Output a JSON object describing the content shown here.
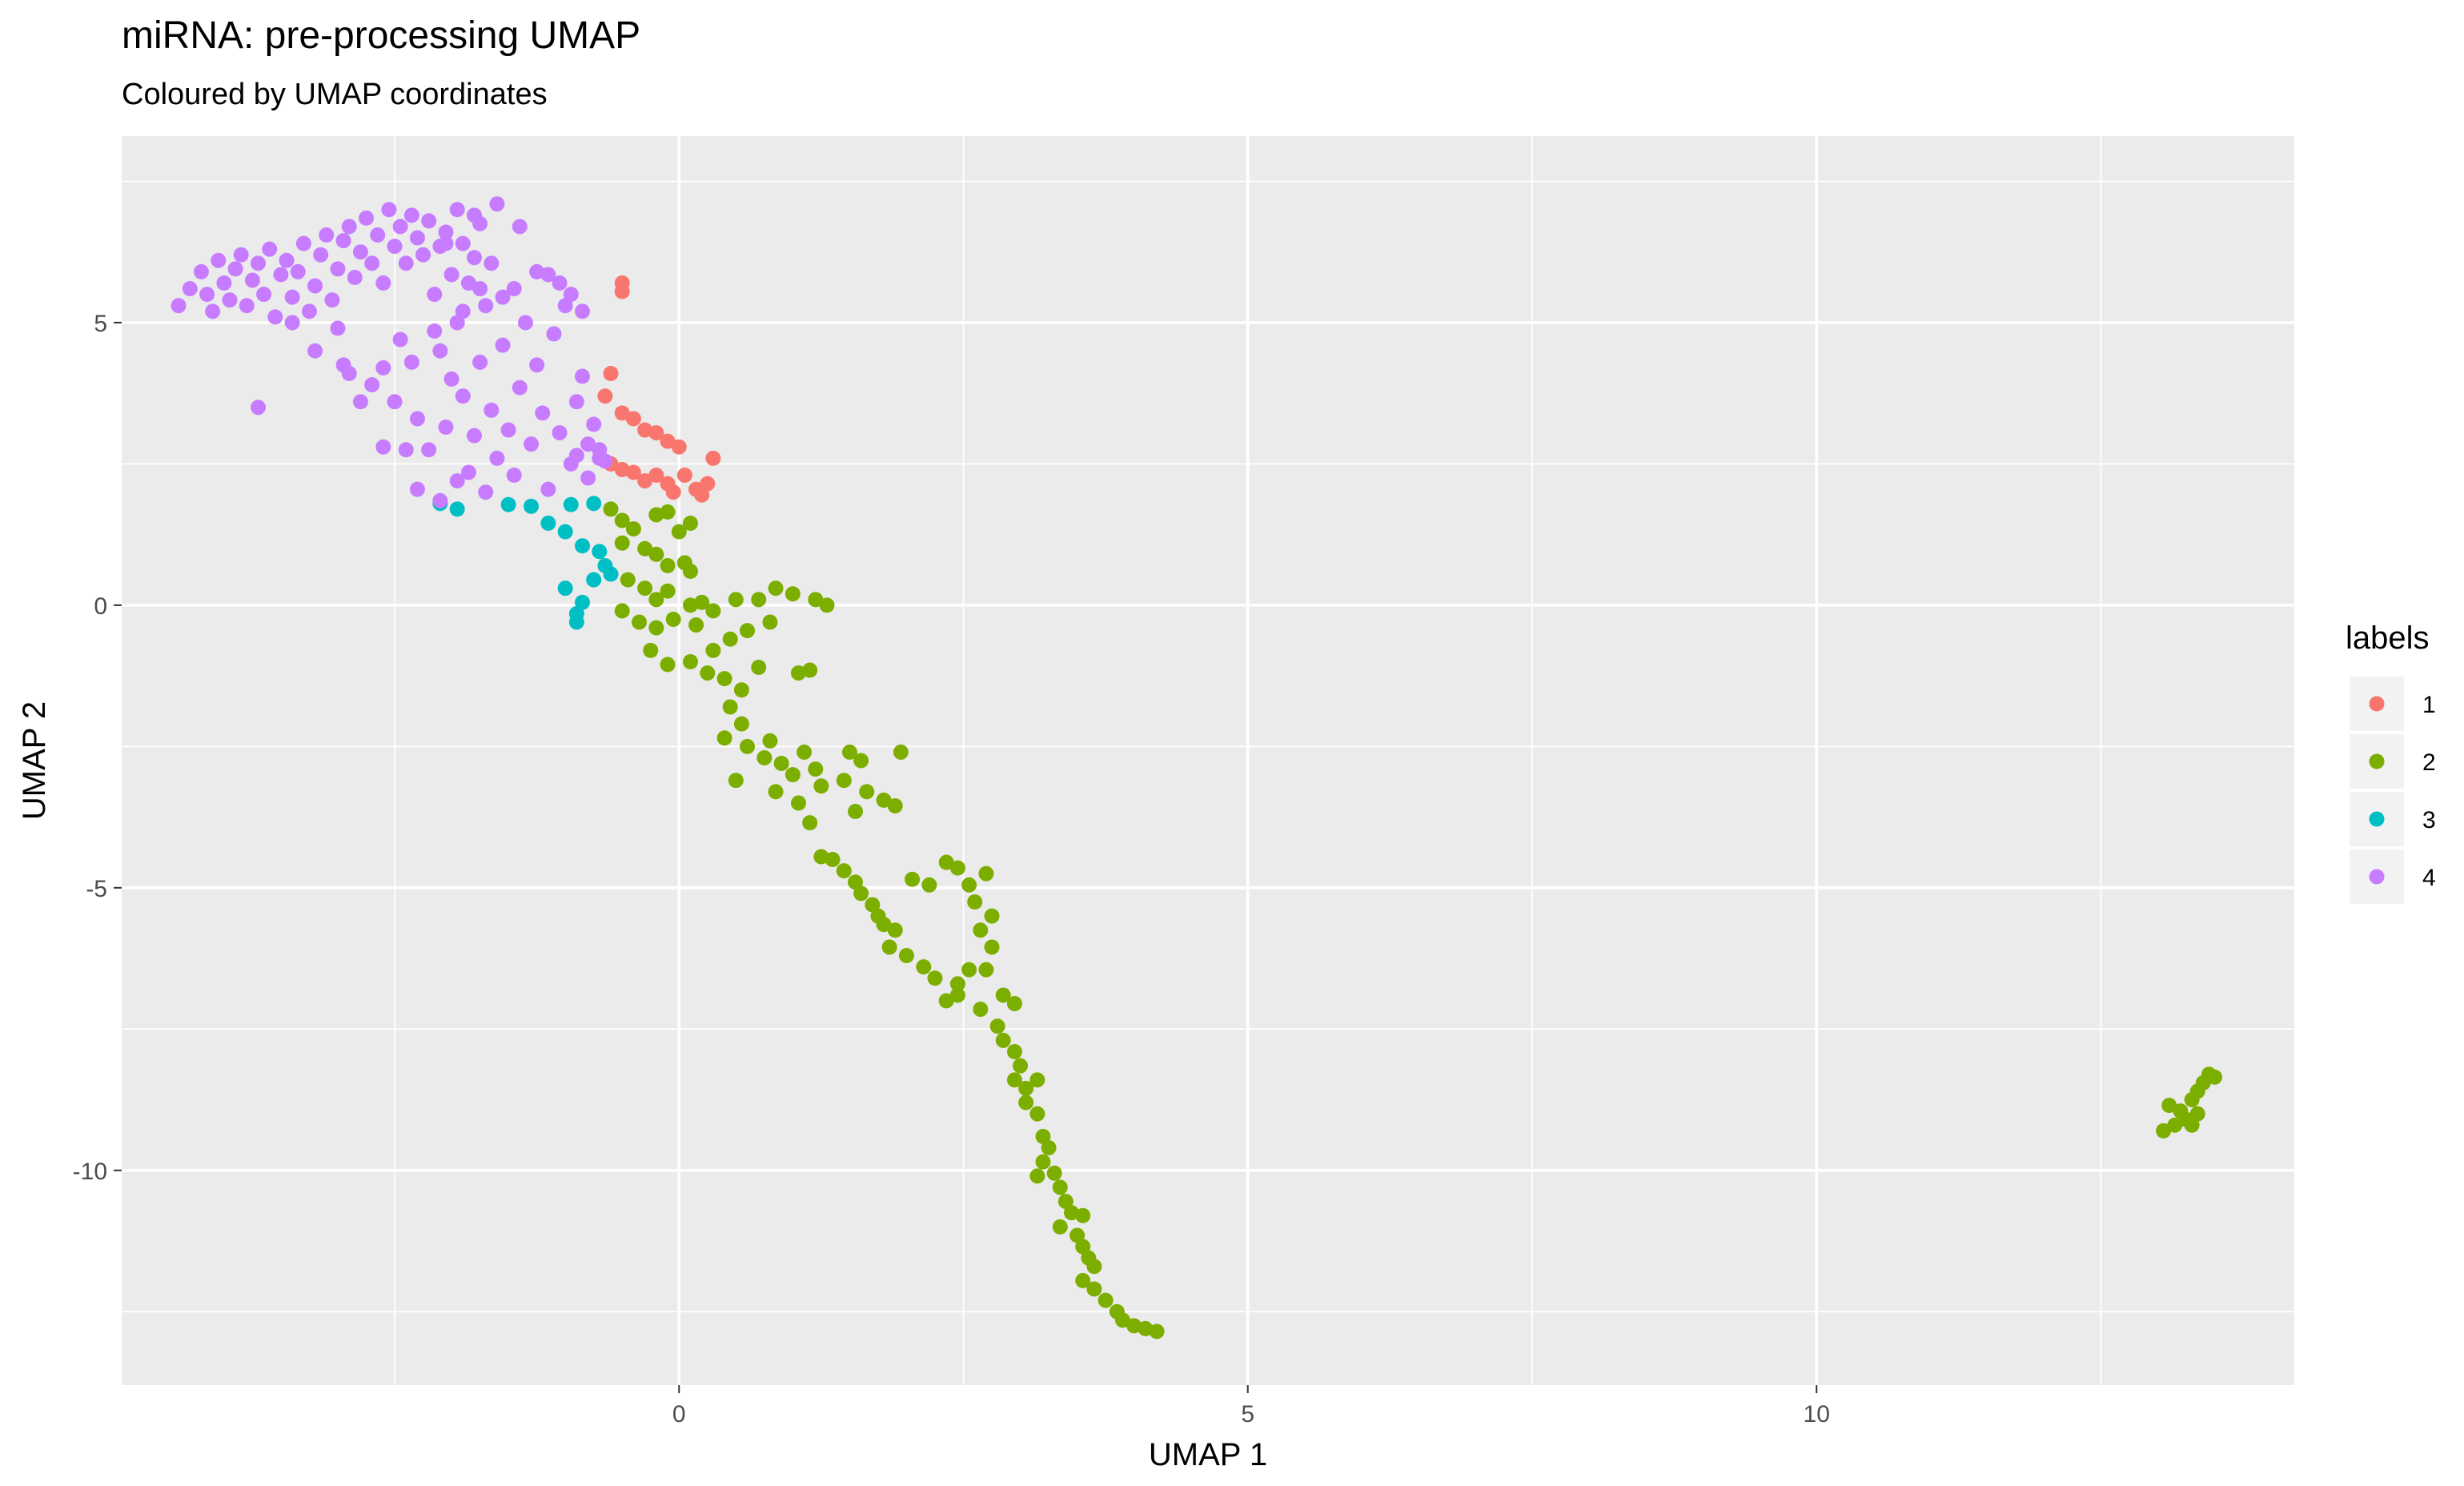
{
  "chart_data": {
    "type": "scatter",
    "title": "miRNA: pre-processing UMAP",
    "subtitle": "Coloured by UMAP coordinates",
    "xlabel": "UMAP 1",
    "ylabel": "UMAP 2",
    "xlim": [
      -4.9,
      14.2
    ],
    "ylim": [
      -13.8,
      8.3
    ],
    "x_ticks": [
      0,
      5,
      10
    ],
    "x_tick_labels": [
      "0",
      "5",
      "10"
    ],
    "y_ticks": [
      5,
      0,
      -5,
      -10
    ],
    "y_tick_labels": [
      "5",
      "0",
      "-5",
      "-10"
    ],
    "grid": true,
    "legend": {
      "title": "labels",
      "placement": "right",
      "items": [
        {
          "label": "1",
          "color": "#F8766D"
        },
        {
          "label": "2",
          "color": "#7CAE00"
        },
        {
          "label": "3",
          "color": "#00BFC4"
        },
        {
          "label": "4",
          "color": "#C77CFF"
        }
      ]
    },
    "series": [
      {
        "label": "1",
        "color": "#F8766D",
        "points": [
          [
            -0.5,
            5.7
          ],
          [
            -0.5,
            5.55
          ],
          [
            -0.6,
            4.1
          ],
          [
            -0.65,
            3.7
          ],
          [
            -0.5,
            3.4
          ],
          [
            -0.4,
            3.3
          ],
          [
            -0.3,
            3.1
          ],
          [
            -0.2,
            3.05
          ],
          [
            -0.1,
            2.9
          ],
          [
            0.0,
            2.8
          ],
          [
            -0.6,
            2.5
          ],
          [
            -0.5,
            2.4
          ],
          [
            -0.4,
            2.35
          ],
          [
            -0.3,
            2.2
          ],
          [
            -0.2,
            2.3
          ],
          [
            -0.1,
            2.15
          ],
          [
            0.05,
            2.3
          ],
          [
            -0.05,
            2.0
          ],
          [
            0.15,
            2.05
          ],
          [
            0.3,
            2.6
          ],
          [
            0.25,
            2.15
          ],
          [
            0.2,
            1.95
          ]
        ]
      },
      {
        "label": "2",
        "color": "#7CAE00",
        "points": [
          [
            -0.6,
            1.7
          ],
          [
            -0.5,
            1.5
          ],
          [
            -0.4,
            1.35
          ],
          [
            -0.2,
            1.6
          ],
          [
            -0.1,
            1.65
          ],
          [
            0.0,
            1.3
          ],
          [
            0.1,
            1.45
          ],
          [
            -0.5,
            1.1
          ],
          [
            -0.3,
            1.0
          ],
          [
            -0.2,
            0.9
          ],
          [
            -0.1,
            0.7
          ],
          [
            0.05,
            0.75
          ],
          [
            0.1,
            0.6
          ],
          [
            -0.45,
            0.45
          ],
          [
            -0.3,
            0.3
          ],
          [
            -0.2,
            0.1
          ],
          [
            -0.1,
            0.25
          ],
          [
            0.1,
            0.0
          ],
          [
            0.2,
            0.05
          ],
          [
            -0.5,
            -0.1
          ],
          [
            -0.35,
            -0.3
          ],
          [
            -0.2,
            -0.4
          ],
          [
            -0.05,
            -0.25
          ],
          [
            0.15,
            -0.35
          ],
          [
            0.3,
            -0.1
          ],
          [
            0.5,
            0.1
          ],
          [
            0.7,
            0.1
          ],
          [
            0.85,
            0.3
          ],
          [
            1.0,
            0.2
          ],
          [
            1.2,
            0.1
          ],
          [
            1.3,
            0.0
          ],
          [
            0.8,
            -0.3
          ],
          [
            0.6,
            -0.45
          ],
          [
            0.45,
            -0.6
          ],
          [
            0.3,
            -0.8
          ],
          [
            0.1,
            -1.0
          ],
          [
            -0.1,
            -1.05
          ],
          [
            -0.25,
            -0.8
          ],
          [
            0.25,
            -1.2
          ],
          [
            0.4,
            -1.3
          ],
          [
            0.55,
            -1.5
          ],
          [
            0.7,
            -1.1
          ],
          [
            1.05,
            -1.2
          ],
          [
            1.15,
            -1.15
          ],
          [
            0.45,
            -1.8
          ],
          [
            0.55,
            -2.1
          ],
          [
            0.4,
            -2.35
          ],
          [
            0.6,
            -2.5
          ],
          [
            0.8,
            -2.4
          ],
          [
            0.75,
            -2.7
          ],
          [
            0.9,
            -2.8
          ],
          [
            1.0,
            -3.0
          ],
          [
            1.1,
            -2.6
          ],
          [
            1.2,
            -2.9
          ],
          [
            0.5,
            -3.1
          ],
          [
            0.85,
            -3.3
          ],
          [
            1.05,
            -3.5
          ],
          [
            1.25,
            -3.2
          ],
          [
            1.15,
            -3.85
          ],
          [
            1.5,
            -2.6
          ],
          [
            1.6,
            -2.75
          ],
          [
            1.45,
            -3.1
          ],
          [
            1.65,
            -3.3
          ],
          [
            1.55,
            -3.65
          ],
          [
            1.8,
            -3.45
          ],
          [
            1.9,
            -3.55
          ],
          [
            1.95,
            -2.6
          ],
          [
            1.25,
            -4.45
          ],
          [
            1.35,
            -4.5
          ],
          [
            1.45,
            -4.7
          ],
          [
            1.55,
            -4.9
          ],
          [
            1.6,
            -5.1
          ],
          [
            1.7,
            -5.3
          ],
          [
            1.75,
            -5.5
          ],
          [
            1.8,
            -5.65
          ],
          [
            1.9,
            -5.75
          ],
          [
            1.85,
            -6.05
          ],
          [
            2.0,
            -6.2
          ],
          [
            2.15,
            -6.4
          ],
          [
            2.25,
            -6.6
          ],
          [
            2.05,
            -4.85
          ],
          [
            2.2,
            -4.95
          ],
          [
            2.35,
            -4.55
          ],
          [
            2.45,
            -4.65
          ],
          [
            2.55,
            -4.95
          ],
          [
            2.6,
            -5.25
          ],
          [
            2.7,
            -4.75
          ],
          [
            2.75,
            -5.5
          ],
          [
            2.65,
            -5.75
          ],
          [
            2.75,
            -6.05
          ],
          [
            2.7,
            -6.45
          ],
          [
            2.55,
            -6.45
          ],
          [
            2.45,
            -6.7
          ],
          [
            2.45,
            -6.9
          ],
          [
            2.35,
            -7.0
          ],
          [
            2.65,
            -7.15
          ],
          [
            2.85,
            -6.9
          ],
          [
            2.95,
            -7.05
          ],
          [
            2.8,
            -7.45
          ],
          [
            2.85,
            -7.7
          ],
          [
            2.95,
            -7.9
          ],
          [
            3.0,
            -8.15
          ],
          [
            2.95,
            -8.4
          ],
          [
            3.05,
            -8.55
          ],
          [
            3.15,
            -8.4
          ],
          [
            3.05,
            -8.8
          ],
          [
            3.15,
            -9.0
          ],
          [
            3.2,
            -9.4
          ],
          [
            3.25,
            -9.6
          ],
          [
            3.2,
            -9.85
          ],
          [
            3.3,
            -10.05
          ],
          [
            3.15,
            -10.1
          ],
          [
            3.35,
            -10.3
          ],
          [
            3.4,
            -10.55
          ],
          [
            3.45,
            -10.75
          ],
          [
            3.35,
            -11.0
          ],
          [
            3.55,
            -10.8
          ],
          [
            3.5,
            -11.15
          ],
          [
            3.55,
            -11.35
          ],
          [
            3.6,
            -11.55
          ],
          [
            3.65,
            -11.7
          ],
          [
            3.55,
            -11.95
          ],
          [
            3.65,
            -12.1
          ],
          [
            3.75,
            -12.3
          ],
          [
            3.85,
            -12.5
          ],
          [
            3.9,
            -12.65
          ],
          [
            4.0,
            -12.75
          ],
          [
            4.1,
            -12.8
          ],
          [
            4.2,
            -12.85
          ],
          [
            13.05,
            -9.3
          ],
          [
            13.15,
            -9.2
          ],
          [
            13.25,
            -9.1
          ],
          [
            13.2,
            -8.95
          ],
          [
            13.3,
            -8.75
          ],
          [
            13.35,
            -8.6
          ],
          [
            13.4,
            -8.45
          ],
          [
            13.45,
            -8.3
          ],
          [
            13.1,
            -8.85
          ],
          [
            13.35,
            -9.0
          ],
          [
            13.3,
            -9.2
          ],
          [
            13.5,
            -8.35
          ]
        ]
      },
      {
        "label": "3",
        "color": "#00BFC4",
        "points": [
          [
            -2.1,
            1.8
          ],
          [
            -1.95,
            1.7
          ],
          [
            -1.5,
            1.78
          ],
          [
            -1.3,
            1.75
          ],
          [
            -0.95,
            1.78
          ],
          [
            -0.75,
            1.8
          ],
          [
            -1.15,
            1.45
          ],
          [
            -1.0,
            1.3
          ],
          [
            -0.85,
            1.05
          ],
          [
            -0.7,
            0.95
          ],
          [
            -0.65,
            0.7
          ],
          [
            -0.75,
            0.45
          ],
          [
            -0.6,
            0.55
          ],
          [
            -1.0,
            0.3
          ],
          [
            -0.85,
            0.05
          ],
          [
            -0.9,
            -0.15
          ],
          [
            -0.9,
            -0.3
          ]
        ]
      },
      {
        "label": "4",
        "color": "#C77CFF",
        "points": [
          [
            -4.4,
            5.3
          ],
          [
            -4.3,
            5.6
          ],
          [
            -4.2,
            5.9
          ],
          [
            -4.15,
            5.5
          ],
          [
            -4.1,
            5.2
          ],
          [
            -4.05,
            6.1
          ],
          [
            -4.0,
            5.7
          ],
          [
            -3.95,
            5.4
          ],
          [
            -3.9,
            5.95
          ],
          [
            -3.85,
            6.2
          ],
          [
            -3.8,
            5.3
          ],
          [
            -3.75,
            5.75
          ],
          [
            -3.7,
            6.05
          ],
          [
            -3.65,
            5.5
          ],
          [
            -3.6,
            6.3
          ],
          [
            -3.55,
            5.1
          ],
          [
            -3.5,
            5.85
          ],
          [
            -3.45,
            6.1
          ],
          [
            -3.4,
            5.45
          ],
          [
            -3.35,
            5.9
          ],
          [
            -3.3,
            6.4
          ],
          [
            -3.25,
            5.2
          ],
          [
            -3.2,
            5.65
          ],
          [
            -3.15,
            6.2
          ],
          [
            -3.1,
            6.55
          ],
          [
            -3.05,
            5.4
          ],
          [
            -3.0,
            5.95
          ],
          [
            -2.95,
            6.45
          ],
          [
            -2.9,
            6.7
          ],
          [
            -2.85,
            5.8
          ],
          [
            -2.8,
            6.25
          ],
          [
            -2.75,
            6.85
          ],
          [
            -2.7,
            6.05
          ],
          [
            -2.65,
            6.55
          ],
          [
            -2.6,
            5.7
          ],
          [
            -2.55,
            7.0
          ],
          [
            -2.5,
            6.35
          ],
          [
            -2.45,
            6.7
          ],
          [
            -2.4,
            6.05
          ],
          [
            -2.35,
            6.9
          ],
          [
            -2.3,
            6.5
          ],
          [
            -2.25,
            6.2
          ],
          [
            -2.2,
            6.8
          ],
          [
            -2.15,
            5.5
          ],
          [
            -2.1,
            6.35
          ],
          [
            -2.05,
            6.6
          ],
          [
            -2.0,
            5.85
          ],
          [
            -1.95,
            7.0
          ],
          [
            -1.9,
            6.4
          ],
          [
            -1.85,
            5.7
          ],
          [
            -1.8,
            6.15
          ],
          [
            -1.75,
            6.75
          ],
          [
            -1.7,
            5.3
          ],
          [
            -1.65,
            6.05
          ],
          [
            -3.7,
            3.5
          ],
          [
            -3.4,
            5.0
          ],
          [
            -3.2,
            4.5
          ],
          [
            -3.0,
            4.9
          ],
          [
            -2.95,
            4.25
          ],
          [
            -2.9,
            4.1
          ],
          [
            -2.8,
            3.6
          ],
          [
            -2.7,
            3.9
          ],
          [
            -2.6,
            2.8
          ],
          [
            -2.5,
            3.6
          ],
          [
            -2.4,
            2.75
          ],
          [
            -2.3,
            3.3
          ],
          [
            -2.2,
            2.75
          ],
          [
            -2.1,
            4.5
          ],
          [
            -2.05,
            3.15
          ],
          [
            -2.0,
            4.0
          ],
          [
            -1.95,
            2.2
          ],
          [
            -1.9,
            3.7
          ],
          [
            -1.85,
            2.35
          ],
          [
            -1.8,
            3.0
          ],
          [
            -1.75,
            4.3
          ],
          [
            -1.7,
            2.0
          ],
          [
            -1.65,
            3.45
          ],
          [
            -1.6,
            2.6
          ],
          [
            -1.55,
            4.6
          ],
          [
            -1.5,
            3.1
          ],
          [
            -1.45,
            2.3
          ],
          [
            -1.4,
            3.85
          ],
          [
            -1.35,
            5.0
          ],
          [
            -1.3,
            2.85
          ],
          [
            -1.25,
            4.25
          ],
          [
            -1.2,
            3.4
          ],
          [
            -1.15,
            2.05
          ],
          [
            -1.1,
            4.8
          ],
          [
            -1.05,
            3.05
          ],
          [
            -1.0,
            5.3
          ],
          [
            -0.95,
            2.5
          ],
          [
            -0.9,
            3.6
          ],
          [
            -0.85,
            4.05
          ],
          [
            -0.8,
            2.25
          ],
          [
            -0.75,
            3.2
          ],
          [
            -0.7,
            2.6
          ],
          [
            -1.25,
            5.9
          ],
          [
            -1.15,
            5.85
          ],
          [
            -1.05,
            5.7
          ],
          [
            -0.95,
            5.5
          ],
          [
            -0.85,
            5.2
          ],
          [
            -1.45,
            5.6
          ],
          [
            -1.55,
            5.45
          ],
          [
            -1.95,
            5.0
          ],
          [
            -2.15,
            4.85
          ],
          [
            -2.45,
            4.7
          ],
          [
            -2.6,
            4.2
          ],
          [
            -2.35,
            4.3
          ],
          [
            -0.7,
            2.75
          ],
          [
            -0.65,
            2.55
          ],
          [
            -0.8,
            2.85
          ],
          [
            -0.9,
            2.65
          ],
          [
            -2.1,
            1.85
          ],
          [
            -2.3,
            2.05
          ],
          [
            -1.6,
            7.1
          ],
          [
            -1.4,
            6.7
          ],
          [
            -1.8,
            6.9
          ],
          [
            -2.05,
            6.4
          ],
          [
            -1.9,
            5.2
          ],
          [
            -1.75,
            5.6
          ]
        ]
      }
    ]
  }
}
